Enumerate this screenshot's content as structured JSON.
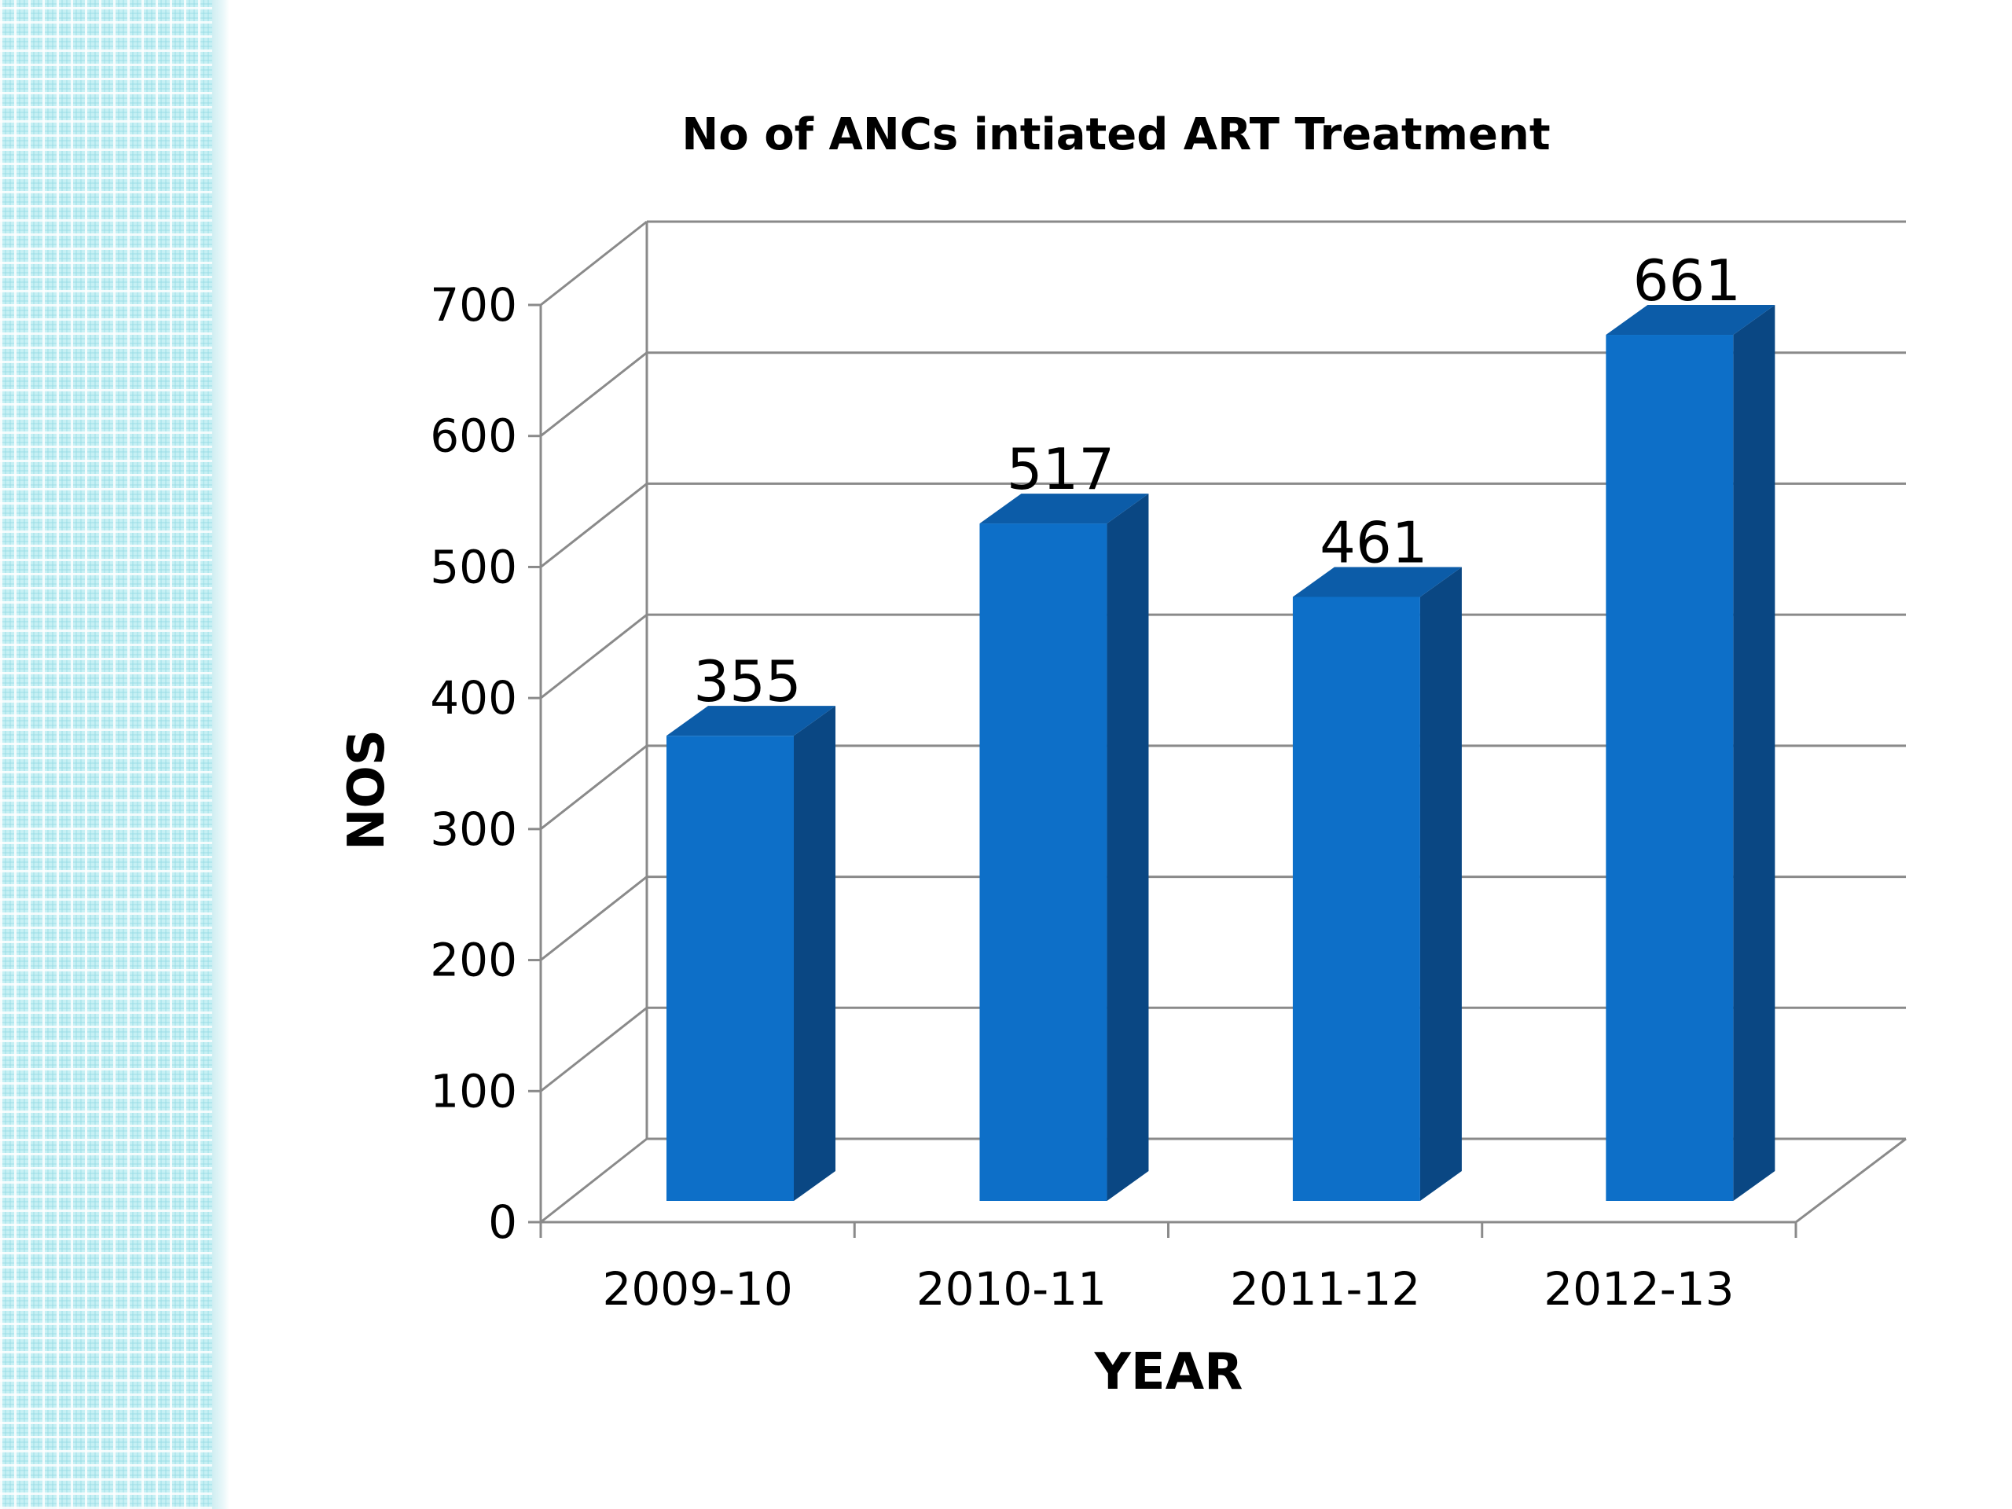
{
  "chart_data": {
    "type": "bar",
    "title": "No of ANCs intiated ART Treatment",
    "xlabel": "YEAR",
    "ylabel": "NOS",
    "categories": [
      "2009-10",
      "2010-11",
      "2011-12",
      "2012-13"
    ],
    "values": [
      355,
      517,
      461,
      661
    ],
    "ylim": [
      0,
      700
    ],
    "yticks": [
      0,
      100,
      200,
      300,
      400,
      500,
      600,
      700
    ],
    "grid": true,
    "style": "3d-column",
    "colors": {
      "bar_front": "#0d6fc8",
      "bar_side": "#0a4783",
      "bar_top": "#0c5ca8",
      "grid": "#8a8a8a"
    }
  }
}
